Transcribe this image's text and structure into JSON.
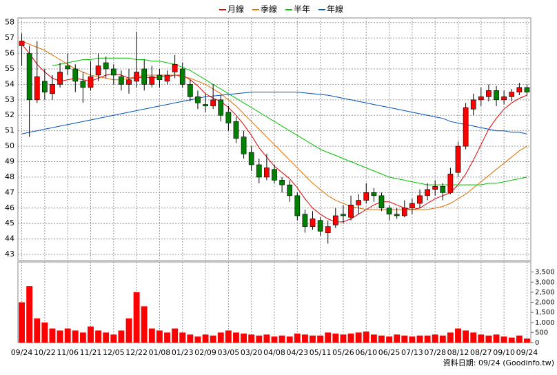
{
  "chart_data": {
    "type": "candlestick",
    "footer": "資料日期: 09/24 (Goodinfo.tw)",
    "categories": [
      "09/24",
      null,
      null,
      "10/22",
      null,
      null,
      "11/06",
      null,
      null,
      "11/21",
      null,
      null,
      "12/05",
      null,
      null,
      "12/22",
      null,
      null,
      "01/08",
      null,
      null,
      "01/23",
      null,
      null,
      "02/09",
      null,
      null,
      "03/05",
      null,
      null,
      "03/20",
      null,
      null,
      "04/08",
      null,
      null,
      "04/23",
      null,
      null,
      "05/11",
      null,
      null,
      "05/26",
      null,
      null,
      "06/10",
      null,
      null,
      "06/25",
      null,
      null,
      "07/13",
      null,
      null,
      "07/28",
      null,
      null,
      "08/12",
      null,
      null,
      "08/27",
      null,
      null,
      "09/10",
      null,
      null,
      "09/24"
    ],
    "open": [
      56.5,
      56.0,
      53.0,
      54.2,
      53.4,
      54.0,
      55.2,
      55.0,
      54.2,
      53.8,
      54.6,
      55.4,
      55.0,
      54.5,
      54.0,
      54.2,
      55.0,
      54.0,
      54.6,
      54.2,
      54.8,
      55.0,
      54.0,
      53.2,
      52.7,
      52.6,
      53.0,
      52.2,
      51.6,
      50.6,
      49.6,
      48.8,
      48.0,
      48.5,
      47.8,
      47.5,
      46.8,
      45.6,
      44.8,
      45.2,
      44.4,
      44.9,
      45.6,
      45.4,
      46.2,
      46.5,
      47.0,
      46.8,
      46.0,
      45.6,
      45.5,
      46.0,
      46.3,
      46.8,
      47.2,
      47.4,
      47.0,
      48.3,
      50.0,
      52.4,
      53.0,
      53.2,
      53.6,
      53.0,
      53.2,
      53.5,
      53.8
    ],
    "high": [
      57.3,
      56.5,
      56.8,
      55.0,
      54.6,
      55.4,
      56.0,
      55.3,
      54.8,
      55.5,
      56.0,
      55.8,
      55.3,
      54.9,
      55.0,
      57.4,
      55.6,
      55.2,
      55.0,
      54.9,
      55.9,
      55.4,
      54.3,
      53.6,
      53.4,
      54.0,
      53.3,
      52.6,
      51.9,
      51.0,
      50.0,
      49.2,
      49.5,
      48.8,
      48.0,
      47.8,
      47.0,
      45.9,
      45.8,
      45.4,
      45.2,
      46.0,
      46.2,
      46.8,
      46.9,
      47.6,
      47.3,
      47.0,
      46.2,
      46.0,
      46.5,
      46.6,
      47.2,
      47.6,
      47.8,
      47.6,
      48.6,
      50.3,
      52.8,
      53.4,
      53.8,
      54.0,
      53.9,
      53.6,
      53.7,
      54.1,
      54.0
    ],
    "low": [
      55.2,
      50.6,
      52.8,
      53.0,
      53.0,
      53.8,
      54.6,
      53.5,
      52.8,
      53.6,
      54.2,
      54.4,
      54.0,
      53.6,
      53.4,
      53.8,
      53.6,
      53.8,
      53.8,
      54.0,
      54.4,
      53.8,
      52.9,
      52.4,
      52.2,
      52.4,
      51.6,
      51.0,
      50.2,
      49.2,
      48.4,
      47.6,
      47.8,
      47.6,
      47.0,
      46.4,
      45.2,
      44.4,
      44.6,
      44.2,
      43.7,
      44.7,
      45.0,
      45.2,
      45.6,
      46.3,
      46.4,
      45.8,
      45.2,
      45.3,
      45.4,
      45.6,
      46.0,
      46.5,
      46.8,
      46.5,
      46.9,
      48.0,
      49.8,
      52.0,
      52.6,
      52.9,
      52.6,
      52.7,
      52.9,
      53.3,
      53.3
    ],
    "close": [
      56.8,
      53.0,
      54.5,
      53.5,
      54.0,
      54.8,
      55.0,
      54.2,
      53.8,
      54.5,
      55.2,
      55.0,
      54.6,
      54.0,
      54.3,
      54.8,
      54.0,
      54.5,
      54.3,
      54.6,
      55.3,
      54.0,
      53.2,
      52.8,
      52.6,
      53.0,
      52.0,
      51.5,
      50.5,
      49.5,
      48.8,
      48.0,
      48.6,
      47.8,
      47.5,
      46.8,
      45.5,
      44.8,
      45.3,
      44.5,
      44.8,
      45.5,
      45.5,
      46.2,
      46.5,
      47.0,
      46.8,
      46.0,
      45.6,
      45.5,
      46.0,
      46.3,
      46.8,
      47.2,
      47.4,
      47.0,
      48.2,
      50.0,
      52.5,
      53.0,
      53.2,
      53.6,
      53.0,
      53.2,
      53.5,
      53.8,
      53.5
    ],
    "volume": [
      2000,
      2800,
      1200,
      1000,
      700,
      600,
      700,
      600,
      500,
      800,
      600,
      500,
      400,
      600,
      1200,
      2500,
      1800,
      700,
      600,
      500,
      700,
      500,
      400,
      300,
      400,
      350,
      500,
      600,
      500,
      450,
      400,
      350,
      400,
      300,
      350,
      300,
      450,
      400,
      350,
      350,
      500,
      450,
      400,
      450,
      500,
      550,
      400,
      350,
      300,
      400,
      350,
      300,
      350,
      350,
      400,
      350,
      500,
      700,
      600,
      500,
      400,
      350,
      400,
      300,
      250,
      350,
      200
    ],
    "up_color": "#ff0000",
    "down_color": "#008000",
    "volume_color": "#ff0000",
    "series": [
      {
        "name": "月線",
        "color": "#e00000",
        "values": [
          56.6,
          56.0,
          55.3,
          54.8,
          54.4,
          54.2,
          54.3,
          54.4,
          54.3,
          54.2,
          54.4,
          54.6,
          54.7,
          54.6,
          54.4,
          54.4,
          54.5,
          54.4,
          54.5,
          54.5,
          54.6,
          54.6,
          54.3,
          53.9,
          53.4,
          53.1,
          52.9,
          52.5,
          52.0,
          51.4,
          50.7,
          49.9,
          49.3,
          48.7,
          48.3,
          47.9,
          47.3,
          46.6,
          46.0,
          45.6,
          45.3,
          45.1,
          45.1,
          45.3,
          45.6,
          45.9,
          46.2,
          46.4,
          46.4,
          46.2,
          46.0,
          45.9,
          46.0,
          46.3,
          46.6,
          46.8,
          47.0,
          47.5,
          48.2,
          49.1,
          50.1,
          51.1,
          51.8,
          52.4,
          52.8,
          53.1,
          53.3
        ]
      },
      {
        "name": "季線",
        "color": "#e07000",
        "values": [
          56.8,
          56.6,
          56.4,
          56.2,
          55.9,
          55.6,
          55.3,
          55.0,
          54.8,
          54.6,
          54.5,
          54.4,
          54.3,
          54.3,
          54.4,
          54.5,
          54.6,
          54.6,
          54.6,
          54.6,
          54.6,
          54.5,
          54.4,
          54.2,
          54.0,
          53.7,
          53.4,
          53.0,
          52.6,
          52.1,
          51.6,
          51.1,
          50.6,
          50.1,
          49.6,
          49.1,
          48.6,
          48.1,
          47.6,
          47.2,
          46.8,
          46.5,
          46.3,
          46.1,
          46.0,
          45.9,
          45.9,
          45.9,
          45.9,
          45.9,
          45.9,
          45.9,
          45.9,
          45.9,
          46.0,
          46.1,
          46.3,
          46.6,
          46.9,
          47.3,
          47.7,
          48.1,
          48.5,
          48.9,
          49.3,
          49.7,
          50.0
        ]
      },
      {
        "name": "半年",
        "color": "#00c000",
        "values": [
          null,
          null,
          null,
          null,
          55.2,
          55.3,
          55.4,
          55.5,
          55.6,
          55.6,
          55.7,
          55.7,
          55.7,
          55.7,
          55.7,
          55.6,
          55.6,
          55.5,
          55.5,
          55.4,
          55.3,
          55.1,
          54.9,
          54.6,
          54.3,
          54.0,
          53.7,
          53.4,
          53.1,
          52.8,
          52.5,
          52.2,
          51.9,
          51.6,
          51.3,
          51.0,
          50.7,
          50.4,
          50.1,
          49.8,
          49.6,
          49.4,
          49.2,
          49.0,
          48.8,
          48.6,
          48.4,
          48.2,
          48.0,
          47.9,
          47.8,
          47.7,
          47.6,
          47.5,
          47.5,
          47.5,
          47.5,
          47.5,
          47.5,
          47.5,
          47.5,
          47.6,
          47.6,
          47.7,
          47.8,
          47.9,
          48.0
        ]
      },
      {
        "name": "年線",
        "color": "#0050c0",
        "values": [
          50.8,
          50.9,
          51.0,
          51.1,
          51.2,
          51.3,
          51.4,
          51.5,
          51.6,
          51.7,
          51.8,
          51.9,
          52.0,
          52.1,
          52.2,
          52.3,
          52.4,
          52.5,
          52.6,
          52.7,
          52.8,
          52.9,
          53.0,
          53.1,
          53.2,
          53.25,
          53.3,
          53.35,
          53.4,
          53.45,
          53.5,
          53.5,
          53.5,
          53.5,
          53.5,
          53.5,
          53.5,
          53.45,
          53.4,
          53.35,
          53.3,
          53.2,
          53.1,
          53.0,
          52.9,
          52.8,
          52.7,
          52.6,
          52.5,
          52.4,
          52.3,
          52.2,
          52.1,
          52.0,
          51.9,
          51.8,
          51.6,
          51.5,
          51.4,
          51.3,
          51.2,
          51.1,
          51.0,
          51.0,
          50.9,
          50.9,
          50.8
        ]
      }
    ],
    "ylim": [
      42.6,
      58.3
    ],
    "yticks": [
      43,
      44,
      45,
      46,
      47,
      48,
      49,
      50,
      51,
      52,
      53,
      54,
      55,
      56,
      57,
      58
    ],
    "y2lim": [
      0,
      4000
    ],
    "y2ticks": [
      0,
      500,
      {
        "value": 1000,
        "label": "1,000"
      },
      {
        "value": 1500,
        "label": "1,500"
      },
      {
        "value": 2000,
        "label": "2,000"
      },
      {
        "value": 2500,
        "label": "2,500"
      },
      {
        "value": 3000,
        "label": "3,000"
      },
      {
        "value": 3500,
        "label": "3,500"
      }
    ],
    "grid": true
  }
}
